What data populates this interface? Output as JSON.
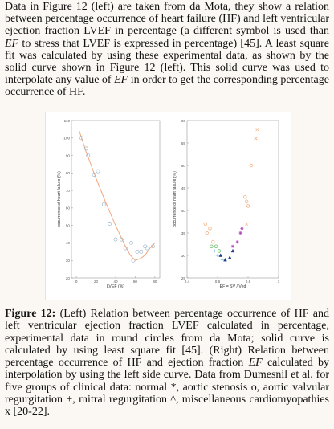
{
  "paragraph": {
    "p1": "Data in Figure 12 (left) are taken from da Mota, they show a relation between percentage occurrence of heart failure (HF) and left ventricular ejection fraction LVEF in percentage (a different symbol is used than ",
    "p1_ef": "EF",
    "p2": " to stress that LVEF is expressed in percentage) [45]. A least square fit was calculated by using these experimental data, as shown by the solid curve shown in Figure 12 (left). This solid curve was used to interpolate any value of ",
    "p2_ef": "EF",
    "p3": " in order to get the corresponding percentage occurrence of HF."
  },
  "caption": {
    "label": "Figure 12:",
    "text": " (Left) Relation between percentage occurrence of HF and left ventricular ejection fraction LVEF calculated in percentage, experimental data in round circles from da Mota; solid curve is calculated by using least square fit [45]. (Right) Relation between percentage occurrence of HF and ejection fraction ",
    "text_ef": "EF",
    "text_end": " calculated by interpolation by using the left side curve. Data from Dumesnil et al. for five groups of clinical data: normal *, aortic stenosis o, aortic valvular regurgitation +, mitral regurgitation ^, miscellaneous cardiomyopathies x [20-22]."
  },
  "chart_data": [
    {
      "type": "scatter",
      "xlabel": "LVEF (%)",
      "ylabel": "occurrence of heart failure (%)",
      "xlim": [
        -5,
        85
      ],
      "ylim": [
        20,
        110
      ],
      "xticks": [
        0,
        20,
        40,
        60,
        80
      ],
      "yticks": [
        20,
        30,
        40,
        50,
        60,
        70,
        80,
        90,
        100,
        110
      ],
      "points": [
        [
          5,
          100
        ],
        [
          10,
          94
        ],
        [
          12,
          90
        ],
        [
          18,
          79
        ],
        [
          22,
          81
        ],
        [
          28,
          62
        ],
        [
          34,
          51
        ],
        [
          40,
          42
        ],
        [
          46,
          42
        ],
        [
          50,
          37
        ],
        [
          56,
          40
        ],
        [
          58,
          30
        ],
        [
          62,
          35
        ],
        [
          66,
          35
        ],
        [
          70,
          38
        ],
        [
          72,
          37
        ],
        [
          78,
          38
        ]
      ],
      "fit_curve": {
        "style": "solid",
        "color": "#f2a67a",
        "x": [
          3,
          10,
          20,
          30,
          40,
          50,
          55,
          60,
          65,
          70,
          75,
          80
        ],
        "y": [
          104,
          92,
          77,
          63,
          50,
          38,
          33,
          30,
          31,
          33,
          37,
          40
        ]
      },
      "marker_color": "#9fb8cc"
    },
    {
      "type": "scatter",
      "xlabel": "EF = SV / Ved",
      "ylabel": "occurrence of heart failure (%)",
      "xlim": [
        0.4,
        1.0
      ],
      "ylim": [
        25,
        60
      ],
      "xticks": [
        0.4,
        0.6,
        0.8,
        1
      ],
      "yticks": [
        25,
        30,
        35,
        40,
        45,
        50,
        55,
        60
      ],
      "series": [
        {
          "marker": "o",
          "color": "#f4b183",
          "points": [
            [
              0.52,
              37
            ],
            [
              0.53,
              35
            ],
            [
              0.55,
              36
            ],
            [
              0.57,
              33
            ],
            [
              0.78,
              43
            ],
            [
              0.79,
              42
            ],
            [
              0.8,
              41
            ],
            [
              0.82,
              50
            ]
          ]
        },
        {
          "marker": "x",
          "color": "#f4b183",
          "points": [
            [
              0.85,
              56
            ],
            [
              0.86,
              58
            ],
            [
              0.79,
              37
            ]
          ]
        },
        {
          "marker": "+",
          "color": "#7cc4e6",
          "points": [
            [
              0.58,
              31
            ],
            [
              0.6,
              30
            ],
            [
              0.63,
              29
            ]
          ]
        },
        {
          "marker": "^",
          "color": "#1f3f8f",
          "points": [
            [
              0.62,
              30
            ],
            [
              0.65,
              29
            ],
            [
              0.68,
              29.5
            ],
            [
              0.7,
              31
            ]
          ]
        },
        {
          "marker": "o",
          "color": "#6cbf6a",
          "points": [
            [
              0.56,
              32
            ],
            [
              0.59,
              32
            ],
            [
              0.61,
              31
            ]
          ]
        },
        {
          "marker": "*",
          "color": "#b34bbd",
          "points": [
            [
              0.7,
              32
            ],
            [
              0.73,
              33
            ],
            [
              0.75,
              35
            ],
            [
              0.76,
              36
            ]
          ]
        }
      ]
    }
  ]
}
